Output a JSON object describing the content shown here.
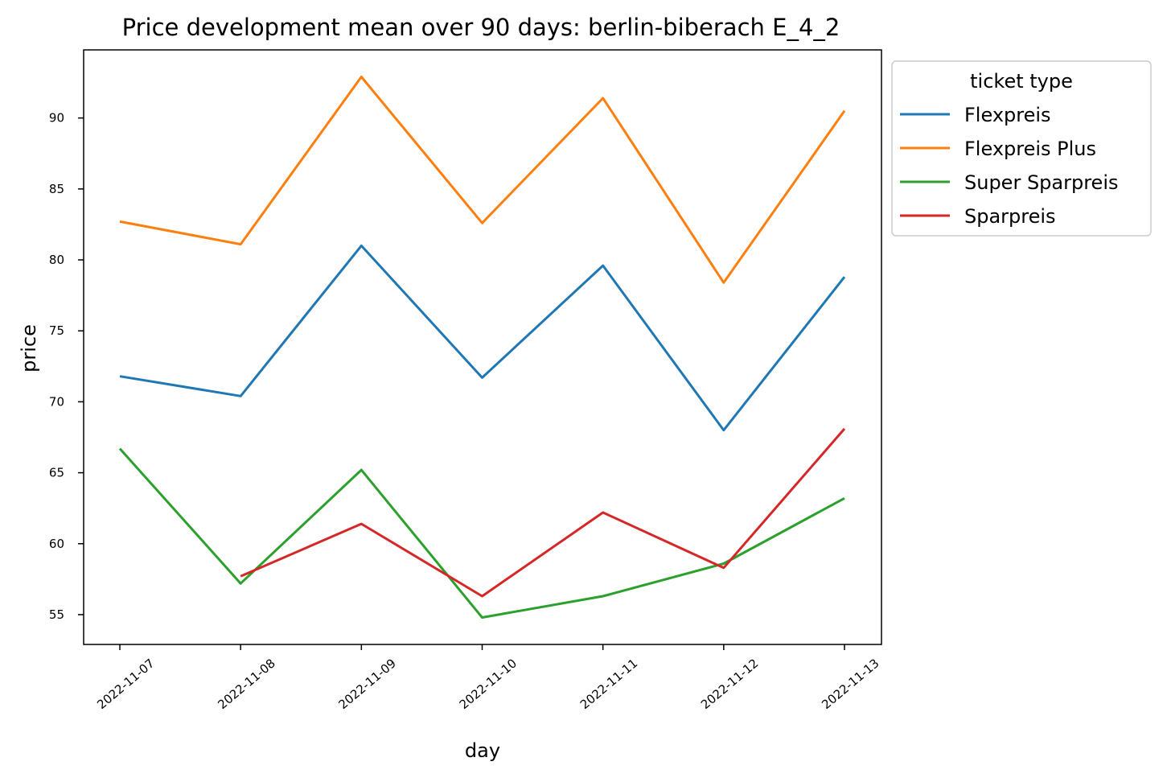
{
  "chart_data": {
    "type": "line",
    "title": "Price development mean over 90 days: berlin-biberach E_4_2",
    "xlabel": "day",
    "ylabel": "price",
    "categories": [
      "2022-11-07",
      "2022-11-08",
      "2022-11-09",
      "2022-11-10",
      "2022-11-11",
      "2022-11-12",
      "2022-11-13"
    ],
    "ylim": [
      52.9,
      94.8
    ],
    "yticks": [
      55,
      60,
      65,
      70,
      75,
      80,
      85,
      90
    ],
    "grid": false,
    "legend": {
      "title": "ticket type",
      "placement": "outside-top-right"
    },
    "series": [
      {
        "name": "Flexpreis",
        "color": "#1f77b4",
        "values": [
          71.8,
          70.4,
          81.0,
          71.7,
          79.6,
          68.0,
          78.8
        ]
      },
      {
        "name": "Flexpreis Plus",
        "color": "#ff7f0e",
        "values": [
          82.7,
          81.1,
          92.9,
          82.6,
          91.4,
          78.4,
          90.5
        ]
      },
      {
        "name": "Super Sparpreis",
        "color": "#2ca02c",
        "values": [
          66.7,
          57.2,
          65.2,
          54.8,
          56.3,
          58.6,
          63.2
        ]
      },
      {
        "name": "Sparpreis",
        "color": "#d62728",
        "values": [
          null,
          57.7,
          61.4,
          56.3,
          62.2,
          58.3,
          68.1
        ]
      }
    ]
  }
}
